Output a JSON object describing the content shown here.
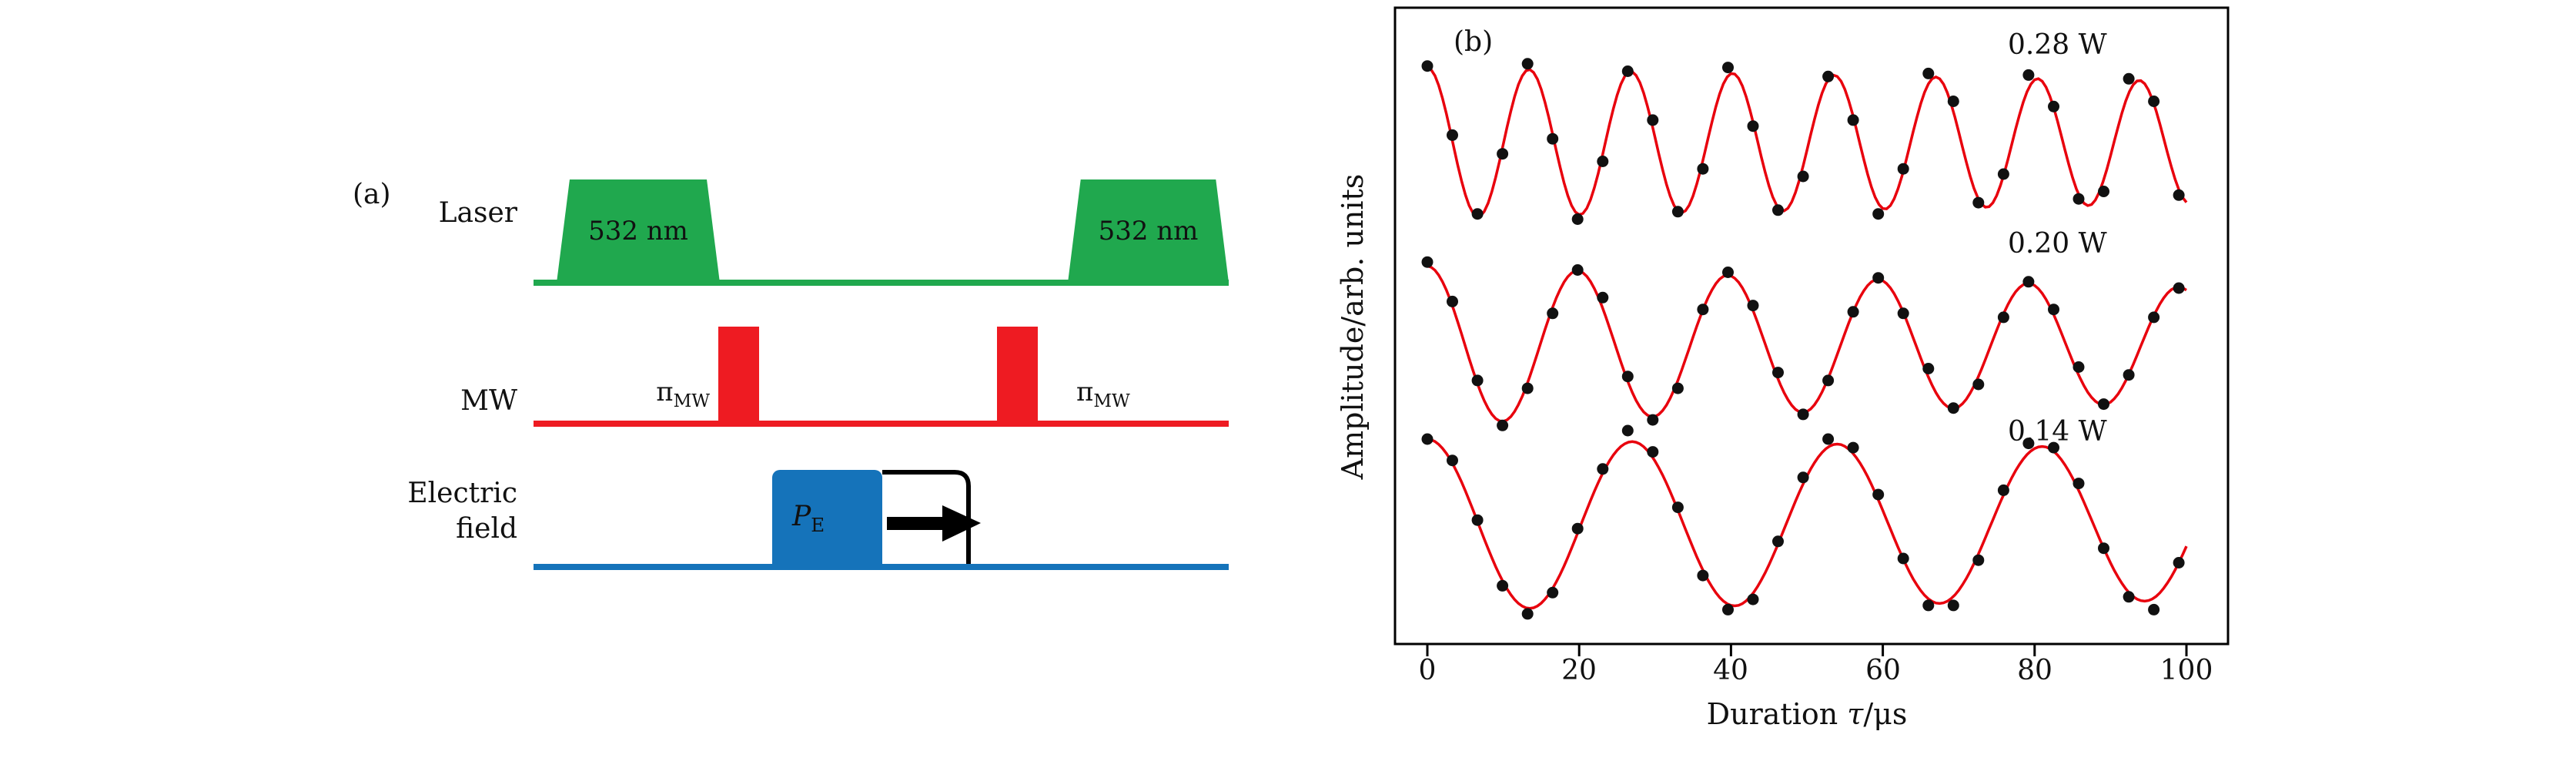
{
  "panel_a": {
    "label": "(a)",
    "rows": [
      {
        "label": "Laser",
        "pulses": [
          "532 nm",
          "532 nm"
        ]
      },
      {
        "label": "MW",
        "pulse_pi": "π",
        "pulse_pi_sub": "MW"
      },
      {
        "label_line1": "Electric",
        "label_line2": "field",
        "pulse_main": "P",
        "pulse_sub": "E"
      }
    ],
    "colors": {
      "laser": "#20a84e",
      "mw": "#ee1b22",
      "efield": "#1573ba"
    }
  },
  "chart_data": {
    "type": "scatter",
    "panel_label": "(b)",
    "title": "",
    "xlabel": "Duration τ/μs",
    "xlabel_parts": {
      "pre": "Duration ",
      "var": "τ",
      "post": "/μs"
    },
    "ylabel": "Amplitude/arb. units",
    "xlim": [
      -4,
      104
    ],
    "xticks": [
      0,
      20,
      40,
      60,
      80,
      100
    ],
    "grid": false,
    "legend_position": "inline-right-above-each-trace",
    "curve_color": "#e8000d",
    "dot_color": "#111111",
    "series": [
      {
        "label": "0.28 W",
        "period_us": 13.4,
        "damping_us": 500,
        "center": 0.212,
        "amplitude": 0.118,
        "points": [
          [
            0,
            1.02
          ],
          [
            3.3,
            0.1
          ],
          [
            6.6,
            -0.95
          ],
          [
            9.9,
            -0.15
          ],
          [
            13.2,
            1.05
          ],
          [
            16.5,
            0.05
          ],
          [
            19.8,
            -1.02
          ],
          [
            23.1,
            -0.25
          ],
          [
            26.4,
            0.95
          ],
          [
            29.7,
            0.3
          ],
          [
            33,
            -0.92
          ],
          [
            36.3,
            -0.35
          ],
          [
            39.6,
            1.0
          ],
          [
            42.9,
            0.22
          ],
          [
            46.2,
            -0.9
          ],
          [
            49.5,
            -0.45
          ],
          [
            52.8,
            0.88
          ],
          [
            56.1,
            0.3
          ],
          [
            59.4,
            -0.95
          ],
          [
            62.7,
            -0.35
          ],
          [
            66,
            0.92
          ],
          [
            69.3,
            0.55
          ],
          [
            72.6,
            -0.8
          ],
          [
            75.9,
            -0.42
          ],
          [
            79.2,
            0.9
          ],
          [
            82.5,
            0.48
          ],
          [
            85.8,
            -0.75
          ],
          [
            89.1,
            -0.65
          ],
          [
            92.4,
            0.85
          ],
          [
            95.7,
            0.55
          ],
          [
            99,
            -0.7
          ]
        ]
      },
      {
        "label": "0.20 W",
        "period_us": 19.8,
        "damping_us": 320,
        "center": 0.53,
        "amplitude": 0.124,
        "points": [
          [
            0,
            1.05
          ],
          [
            3.3,
            0.55
          ],
          [
            6.6,
            -0.45
          ],
          [
            9.9,
            -1.02
          ],
          [
            13.2,
            -0.55
          ],
          [
            16.5,
            0.4
          ],
          [
            19.8,
            0.95
          ],
          [
            23.1,
            0.6
          ],
          [
            26.4,
            -0.4
          ],
          [
            29.7,
            -0.95
          ],
          [
            33,
            -0.55
          ],
          [
            36.3,
            0.45
          ],
          [
            39.6,
            0.92
          ],
          [
            42.9,
            0.5
          ],
          [
            46.2,
            -0.35
          ],
          [
            49.5,
            -0.88
          ],
          [
            52.8,
            -0.45
          ],
          [
            56.1,
            0.42
          ],
          [
            59.4,
            0.85
          ],
          [
            62.7,
            0.4
          ],
          [
            66,
            -0.3
          ],
          [
            69.3,
            -0.8
          ],
          [
            72.6,
            -0.5
          ],
          [
            75.9,
            0.35
          ],
          [
            79.2,
            0.8
          ],
          [
            82.5,
            0.45
          ],
          [
            85.8,
            -0.28
          ],
          [
            89.1,
            -0.75
          ],
          [
            92.4,
            -0.38
          ],
          [
            95.7,
            0.35
          ],
          [
            99,
            0.72
          ]
        ]
      },
      {
        "label": "0.14 W",
        "period_us": 27.0,
        "damping_us": 900,
        "center": 0.812,
        "amplitude": 0.134,
        "points": [
          [
            0,
            1.0
          ],
          [
            3.3,
            0.75
          ],
          [
            6.6,
            0.05
          ],
          [
            9.9,
            -0.72
          ],
          [
            13.2,
            -1.05
          ],
          [
            16.5,
            -0.8
          ],
          [
            19.8,
            -0.05
          ],
          [
            23.1,
            0.65
          ],
          [
            26.4,
            1.1
          ],
          [
            29.7,
            0.85
          ],
          [
            33,
            0.2
          ],
          [
            36.3,
            -0.6
          ],
          [
            39.6,
            -1.0
          ],
          [
            42.9,
            -0.88
          ],
          [
            46.2,
            -0.2
          ],
          [
            49.5,
            0.55
          ],
          [
            52.8,
            1.0
          ],
          [
            56.1,
            0.9
          ],
          [
            59.4,
            0.35
          ],
          [
            62.7,
            -0.4
          ],
          [
            66,
            -0.95
          ],
          [
            69.3,
            -0.95
          ],
          [
            72.6,
            -0.42
          ],
          [
            75.9,
            0.4
          ],
          [
            79.2,
            0.95
          ],
          [
            82.5,
            0.9
          ],
          [
            85.8,
            0.48
          ],
          [
            89.1,
            -0.28
          ],
          [
            92.4,
            -0.85
          ],
          [
            95.7,
            -1.0
          ],
          [
            99,
            -0.45
          ]
        ]
      }
    ]
  }
}
